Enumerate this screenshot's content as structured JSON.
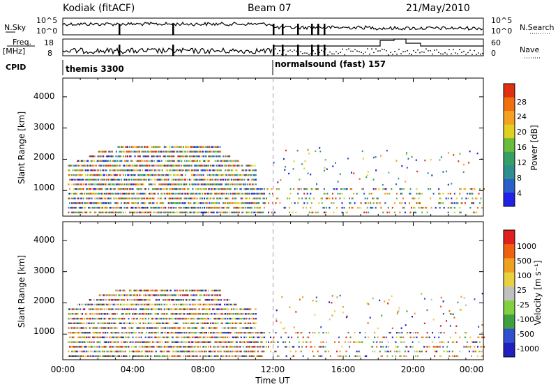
{
  "header": {
    "station": "Kodiak (fitACF)",
    "beam": "Beam 07",
    "date": "21/May/2010"
  },
  "left_labels": {
    "nsky": "N.Sky",
    "freq": "Freq.",
    "mhz": "[MHz]",
    "cpid": "CPID"
  },
  "right_labels": {
    "nsearch": "N.Search",
    "nave": "Nave"
  },
  "noise_panel": {
    "left_ticks": [
      "10^5",
      "10^0"
    ],
    "right_ticks": [
      "10^5",
      "10^0"
    ]
  },
  "freq_panel": {
    "left_ticks": [
      "18",
      "8"
    ],
    "right_ticks": [
      "60",
      "0"
    ]
  },
  "cpid": {
    "segments": [
      {
        "label": "themis 3300",
        "start_hour": 0
      },
      {
        "label": "normalsound (fast) 157",
        "start_hour": 12
      }
    ]
  },
  "power_panel": {
    "ylabel": "Slant Range [km]",
    "yticks": [
      "4000",
      "3000",
      "2000",
      "1000"
    ],
    "colorbar_label": "Power [dB]",
    "colorbar_ticks": [
      "28",
      "24",
      "20",
      "16",
      "12",
      "8",
      "4"
    ]
  },
  "velocity_panel": {
    "ylabel": "Slant Range [km]",
    "yticks": [
      "4000",
      "3000",
      "2000",
      "1000"
    ],
    "colorbar_label": "Velocity [m s⁻¹]",
    "colorbar_ticks": [
      "1000",
      "500",
      "100",
      "25",
      "-25",
      "-100",
      "-500",
      "-1000"
    ]
  },
  "xaxis": {
    "label": "Time UT",
    "ticks": [
      "00:00",
      "04:00",
      "08:00",
      "12:00",
      "16:00",
      "20:00",
      "00:00"
    ]
  },
  "chart_data": {
    "type": "heatmap",
    "xlabel": "Time UT",
    "ylabel": "Slant Range [km]",
    "xlim_hours": [
      0,
      24
    ],
    "ylim_km": [
      180,
      4600
    ],
    "power_colorscale": [
      "#2020e8",
      "#2b5fc8",
      "#2f8f8f",
      "#35a065",
      "#6cbc3c",
      "#e0d020",
      "#f5a020",
      "#f07010",
      "#e03010"
    ],
    "velocity_colorscale": [
      "#2020c0",
      "#3050d0",
      "#40a040",
      "#80d040",
      "#c0c0c0",
      "#e8d040",
      "#f0a020",
      "#f06010",
      "#e02020"
    ],
    "scatter_bands": [
      {
        "range_km": 300,
        "start_hour": 0.3,
        "end_hour": 24
      },
      {
        "range_km": 450,
        "start_hour": 0.3,
        "end_hour": 24
      },
      {
        "range_km": 600,
        "start_hour": 0.3,
        "end_hour": 24
      },
      {
        "range_km": 750,
        "start_hour": 0.3,
        "end_hour": 24
      },
      {
        "range_km": 900,
        "start_hour": 0.3,
        "end_hour": 24
      },
      {
        "range_km": 1050,
        "start_hour": 0.3,
        "end_hour": 24
      },
      {
        "range_km": 1200,
        "start_hour": 0.3,
        "end_hour": 11
      },
      {
        "range_km": 1350,
        "start_hour": 0.3,
        "end_hour": 11
      },
      {
        "range_km": 1500,
        "start_hour": 0.3,
        "end_hour": 11
      },
      {
        "range_km": 1650,
        "start_hour": 0.3,
        "end_hour": 11
      },
      {
        "range_km": 1800,
        "start_hour": 0.3,
        "end_hour": 11
      },
      {
        "range_km": 1950,
        "start_hour": 0.8,
        "end_hour": 10
      },
      {
        "range_km": 2100,
        "start_hour": 1.5,
        "end_hour": 9.5
      },
      {
        "range_km": 2250,
        "start_hour": 2,
        "end_hour": 9
      },
      {
        "range_km": 2400,
        "start_hour": 3,
        "end_hour": 9
      }
    ]
  }
}
